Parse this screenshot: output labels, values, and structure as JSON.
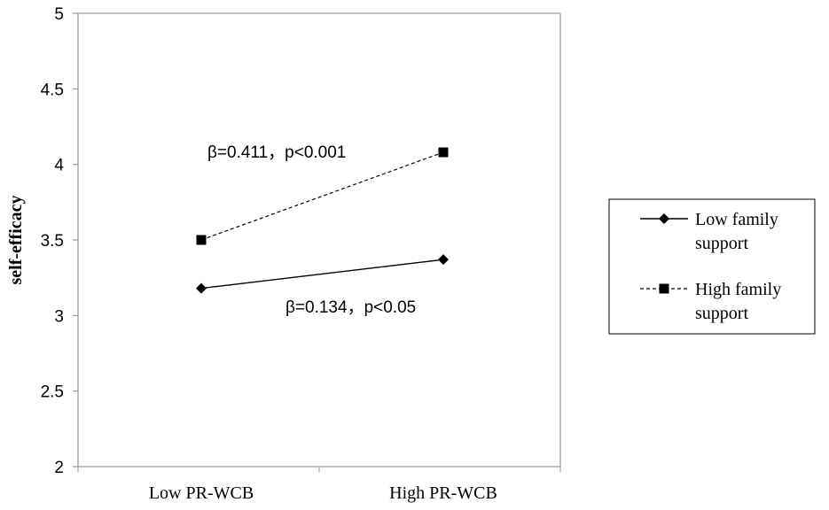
{
  "chart_data": {
    "type": "line",
    "title": "",
    "xlabel": "",
    "ylabel": "self-efficacy",
    "ylim": [
      2,
      5
    ],
    "yticks": [
      "2",
      "2.5",
      "3",
      "3.5",
      "4",
      "4.5",
      "5"
    ],
    "categories": [
      "Low PR-WCB",
      "High PR-WCB"
    ],
    "grid": false,
    "legend_position": "right",
    "series": [
      {
        "name_lines": [
          "Low family",
          "support"
        ],
        "values": [
          3.18,
          3.37
        ],
        "line_style": "solid",
        "marker": "diamond",
        "color": "#000000"
      },
      {
        "name_lines": [
          "High family",
          "support"
        ],
        "values": [
          3.5,
          4.08
        ],
        "line_style": "dashed",
        "marker": "square",
        "color": "#000000"
      }
    ],
    "annotations": [
      {
        "text": "β=0.411，p<0.001",
        "series": 1
      },
      {
        "text": "β=0.134，p<0.05",
        "series": 0
      }
    ]
  }
}
